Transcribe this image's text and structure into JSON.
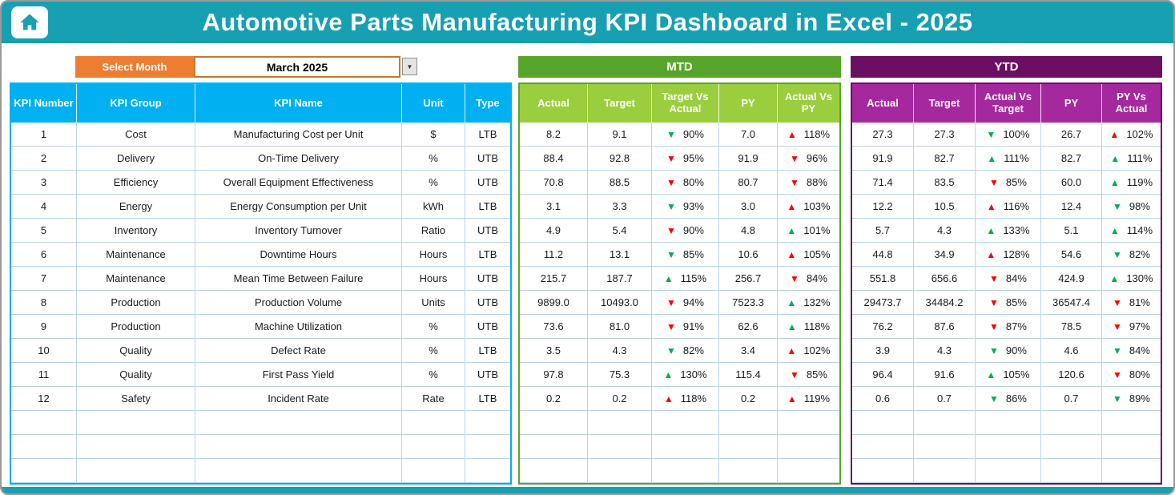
{
  "title": "Automotive Parts Manufacturing KPI Dashboard in Excel - 2025",
  "controls": {
    "select_month_label": "Select Month",
    "selected_month": "March 2025"
  },
  "sections": {
    "mtd": "MTD",
    "ytd": "YTD"
  },
  "colors": {
    "teal": "#16a0b2",
    "orange": "#ED7D31",
    "blue": "#00B0F0",
    "mtd_green": "#57A62B",
    "mtd_header_green": "#9BCE3E",
    "ytd_purple": "#6B0F63",
    "ytd_header_purple": "#A6289E",
    "arrow_red": "#FF0000",
    "arrow_green": "#00B050"
  },
  "table": {
    "left_headers": [
      "KPI Number",
      "KPI Group",
      "KPI Name",
      "Unit",
      "Type"
    ],
    "mtd_headers": [
      "Actual",
      "Target",
      "Target Vs Actual",
      "PY",
      "Actual Vs PY"
    ],
    "ytd_headers": [
      "Actual",
      "Target",
      "Actual Vs Target",
      "PY",
      "PY Vs Actual"
    ],
    "empty_row_count": 3,
    "rows": [
      {
        "no": "1",
        "group": "Cost",
        "name": "Manufacturing Cost per Unit",
        "unit": "$",
        "type": "LTB",
        "mtd": {
          "actual": "8.2",
          "target": "9.1",
          "target_vs_actual": {
            "arrow": "down",
            "color": "green",
            "value": "90%"
          },
          "py": "7.0",
          "actual_vs_py": {
            "arrow": "up",
            "color": "red",
            "value": "118%"
          }
        },
        "ytd": {
          "actual": "27.3",
          "target": "27.3",
          "actual_vs_target": {
            "arrow": "down",
            "color": "green",
            "value": "100%"
          },
          "py": "26.7",
          "py_vs_actual": {
            "arrow": "up",
            "color": "red",
            "value": "102%"
          }
        }
      },
      {
        "no": "2",
        "group": "Delivery",
        "name": "On-Time Delivery",
        "unit": "%",
        "type": "UTB",
        "mtd": {
          "actual": "88.4",
          "target": "92.8",
          "target_vs_actual": {
            "arrow": "down",
            "color": "red",
            "value": "95%"
          },
          "py": "91.9",
          "actual_vs_py": {
            "arrow": "down",
            "color": "red",
            "value": "96%"
          }
        },
        "ytd": {
          "actual": "91.9",
          "target": "82.7",
          "actual_vs_target": {
            "arrow": "up",
            "color": "green",
            "value": "111%"
          },
          "py": "82.7",
          "py_vs_actual": {
            "arrow": "up",
            "color": "green",
            "value": "111%"
          }
        }
      },
      {
        "no": "3",
        "group": "Efficiency",
        "name": "Overall Equipment Effectiveness",
        "unit": "%",
        "type": "UTB",
        "mtd": {
          "actual": "70.8",
          "target": "88.5",
          "target_vs_actual": {
            "arrow": "down",
            "color": "red",
            "value": "80%"
          },
          "py": "80.7",
          "actual_vs_py": {
            "arrow": "down",
            "color": "red",
            "value": "88%"
          }
        },
        "ytd": {
          "actual": "71.4",
          "target": "83.5",
          "actual_vs_target": {
            "arrow": "down",
            "color": "red",
            "value": "85%"
          },
          "py": "60.0",
          "py_vs_actual": {
            "arrow": "up",
            "color": "green",
            "value": "119%"
          }
        }
      },
      {
        "no": "4",
        "group": "Energy",
        "name": "Energy Consumption per Unit",
        "unit": "kWh",
        "type": "LTB",
        "mtd": {
          "actual": "3.1",
          "target": "3.3",
          "target_vs_actual": {
            "arrow": "down",
            "color": "green",
            "value": "93%"
          },
          "py": "3.0",
          "actual_vs_py": {
            "arrow": "up",
            "color": "red",
            "value": "103%"
          }
        },
        "ytd": {
          "actual": "12.2",
          "target": "10.5",
          "actual_vs_target": {
            "arrow": "up",
            "color": "red",
            "value": "116%"
          },
          "py": "12.4",
          "py_vs_actual": {
            "arrow": "down",
            "color": "green",
            "value": "98%"
          }
        }
      },
      {
        "no": "5",
        "group": "Inventory",
        "name": "Inventory Turnover",
        "unit": "Ratio",
        "type": "UTB",
        "mtd": {
          "actual": "4.9",
          "target": "5.4",
          "target_vs_actual": {
            "arrow": "down",
            "color": "red",
            "value": "90%"
          },
          "py": "4.8",
          "actual_vs_py": {
            "arrow": "up",
            "color": "green",
            "value": "101%"
          }
        },
        "ytd": {
          "actual": "5.7",
          "target": "4.3",
          "actual_vs_target": {
            "arrow": "up",
            "color": "green",
            "value": "133%"
          },
          "py": "5.1",
          "py_vs_actual": {
            "arrow": "up",
            "color": "green",
            "value": "114%"
          }
        }
      },
      {
        "no": "6",
        "group": "Maintenance",
        "name": "Downtime Hours",
        "unit": "Hours",
        "type": "LTB",
        "mtd": {
          "actual": "11.2",
          "target": "13.1",
          "target_vs_actual": {
            "arrow": "down",
            "color": "green",
            "value": "85%"
          },
          "py": "10.6",
          "actual_vs_py": {
            "arrow": "up",
            "color": "red",
            "value": "105%"
          }
        },
        "ytd": {
          "actual": "44.8",
          "target": "34.9",
          "actual_vs_target": {
            "arrow": "up",
            "color": "red",
            "value": "128%"
          },
          "py": "54.6",
          "py_vs_actual": {
            "arrow": "down",
            "color": "green",
            "value": "82%"
          }
        }
      },
      {
        "no": "7",
        "group": "Maintenance",
        "name": "Mean Time Between Failure",
        "unit": "Hours",
        "type": "UTB",
        "mtd": {
          "actual": "215.7",
          "target": "187.7",
          "target_vs_actual": {
            "arrow": "up",
            "color": "green",
            "value": "115%"
          },
          "py": "256.7",
          "actual_vs_py": {
            "arrow": "down",
            "color": "red",
            "value": "84%"
          }
        },
        "ytd": {
          "actual": "551.8",
          "target": "656.6",
          "actual_vs_target": {
            "arrow": "down",
            "color": "red",
            "value": "84%"
          },
          "py": "424.9",
          "py_vs_actual": {
            "arrow": "up",
            "color": "green",
            "value": "130%"
          }
        }
      },
      {
        "no": "8",
        "group": "Production",
        "name": "Production Volume",
        "unit": "Units",
        "type": "UTB",
        "mtd": {
          "actual": "9899.0",
          "target": "10493.0",
          "target_vs_actual": {
            "arrow": "down",
            "color": "red",
            "value": "94%"
          },
          "py": "7523.3",
          "actual_vs_py": {
            "arrow": "up",
            "color": "green",
            "value": "132%"
          }
        },
        "ytd": {
          "actual": "29473.7",
          "target": "34484.2",
          "actual_vs_target": {
            "arrow": "down",
            "color": "red",
            "value": "85%"
          },
          "py": "36547.4",
          "py_vs_actual": {
            "arrow": "down",
            "color": "red",
            "value": "81%"
          }
        }
      },
      {
        "no": "9",
        "group": "Production",
        "name": "Machine Utilization",
        "unit": "%",
        "type": "UTB",
        "mtd": {
          "actual": "73.6",
          "target": "81.0",
          "target_vs_actual": {
            "arrow": "down",
            "color": "red",
            "value": "91%"
          },
          "py": "62.6",
          "actual_vs_py": {
            "arrow": "up",
            "color": "green",
            "value": "118%"
          }
        },
        "ytd": {
          "actual": "76.2",
          "target": "87.6",
          "actual_vs_target": {
            "arrow": "down",
            "color": "red",
            "value": "87%"
          },
          "py": "78.5",
          "py_vs_actual": {
            "arrow": "down",
            "color": "red",
            "value": "97%"
          }
        }
      },
      {
        "no": "10",
        "group": "Quality",
        "name": "Defect Rate",
        "unit": "%",
        "type": "LTB",
        "mtd": {
          "actual": "3.5",
          "target": "4.3",
          "target_vs_actual": {
            "arrow": "down",
            "color": "green",
            "value": "82%"
          },
          "py": "3.4",
          "actual_vs_py": {
            "arrow": "up",
            "color": "red",
            "value": "102%"
          }
        },
        "ytd": {
          "actual": "3.9",
          "target": "4.3",
          "actual_vs_target": {
            "arrow": "down",
            "color": "green",
            "value": "90%"
          },
          "py": "4.6",
          "py_vs_actual": {
            "arrow": "down",
            "color": "green",
            "value": "84%"
          }
        }
      },
      {
        "no": "11",
        "group": "Quality",
        "name": "First Pass Yield",
        "unit": "%",
        "type": "UTB",
        "mtd": {
          "actual": "97.8",
          "target": "75.3",
          "target_vs_actual": {
            "arrow": "up",
            "color": "green",
            "value": "130%"
          },
          "py": "115.4",
          "actual_vs_py": {
            "arrow": "down",
            "color": "red",
            "value": "85%"
          }
        },
        "ytd": {
          "actual": "96.4",
          "target": "91.6",
          "actual_vs_target": {
            "arrow": "up",
            "color": "green",
            "value": "105%"
          },
          "py": "120.6",
          "py_vs_actual": {
            "arrow": "down",
            "color": "red",
            "value": "80%"
          }
        }
      },
      {
        "no": "12",
        "group": "Safety",
        "name": "Incident Rate",
        "unit": "Rate",
        "type": "LTB",
        "mtd": {
          "actual": "0.2",
          "target": "0.2",
          "target_vs_actual": {
            "arrow": "up",
            "color": "red",
            "value": "118%"
          },
          "py": "0.2",
          "actual_vs_py": {
            "arrow": "up",
            "color": "red",
            "value": "119%"
          }
        },
        "ytd": {
          "actual": "0.6",
          "target": "0.7",
          "actual_vs_target": {
            "arrow": "down",
            "color": "green",
            "value": "86%"
          },
          "py": "0.7",
          "py_vs_actual": {
            "arrow": "down",
            "color": "green",
            "value": "89%"
          }
        }
      }
    ]
  }
}
